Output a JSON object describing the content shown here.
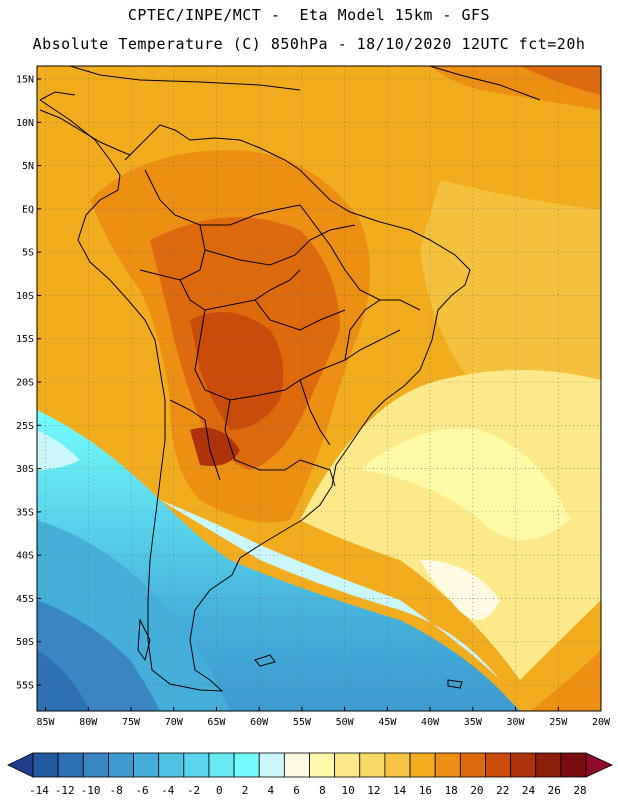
{
  "header": {
    "title_line1": "CPTEC/INPE/MCT -  Eta Model 15km - GFS",
    "title_line2": "Absolute Temperature (C) 850hPa - 18/10/2020 12UTC fct=20h"
  },
  "map": {
    "lat_labels": [
      "15N",
      "10N",
      "5N",
      "EQ",
      "5S",
      "10S",
      "15S",
      "20S",
      "25S",
      "30S",
      "35S",
      "40S",
      "45S",
      "50S",
      "55S"
    ],
    "lon_labels": [
      "85W",
      "80W",
      "75W",
      "70W",
      "65W",
      "60W",
      "55W",
      "50W",
      "45W",
      "40W",
      "35W",
      "30W",
      "25W",
      "20W"
    ],
    "lat_values": [
      15,
      10,
      5,
      0,
      -5,
      -10,
      -15,
      -20,
      -25,
      -30,
      -35,
      -40,
      -45,
      -50,
      -55
    ],
    "lon_values": [
      -85,
      -80,
      -75,
      -70,
      -65,
      -60,
      -55,
      -50,
      -45,
      -40,
      -35,
      -30,
      -25,
      -20
    ],
    "bounds": {
      "lon_min": -86,
      "lon_max": -20,
      "lat_min": -58,
      "lat_max": 16.5
    }
  },
  "legend": {
    "tick_labels": [
      "-14",
      "-12",
      "-10",
      "-8",
      "-6",
      "-4",
      "-2",
      "0",
      "2",
      "4",
      "6",
      "8",
      "10",
      "12",
      "14",
      "16",
      "18",
      "20",
      "22",
      "24",
      "26",
      "28"
    ],
    "colors": [
      "#1f3f8c",
      "#2458a1",
      "#2f6fb3",
      "#3a86c2",
      "#3f9bcf",
      "#45afd9",
      "#4fc3e3",
      "#5ad6ec",
      "#66eaf4",
      "#74fdfd",
      "#c9f7fb",
      "#fffbe2",
      "#fffaa8",
      "#fde98a",
      "#f9d865",
      "#f4c442",
      "#f2ad1f",
      "#ec8f12",
      "#df6a0d",
      "#cb4b0b",
      "#ae330d",
      "#8c1e0c",
      "#7a0d10",
      "#920a2a"
    ]
  }
}
